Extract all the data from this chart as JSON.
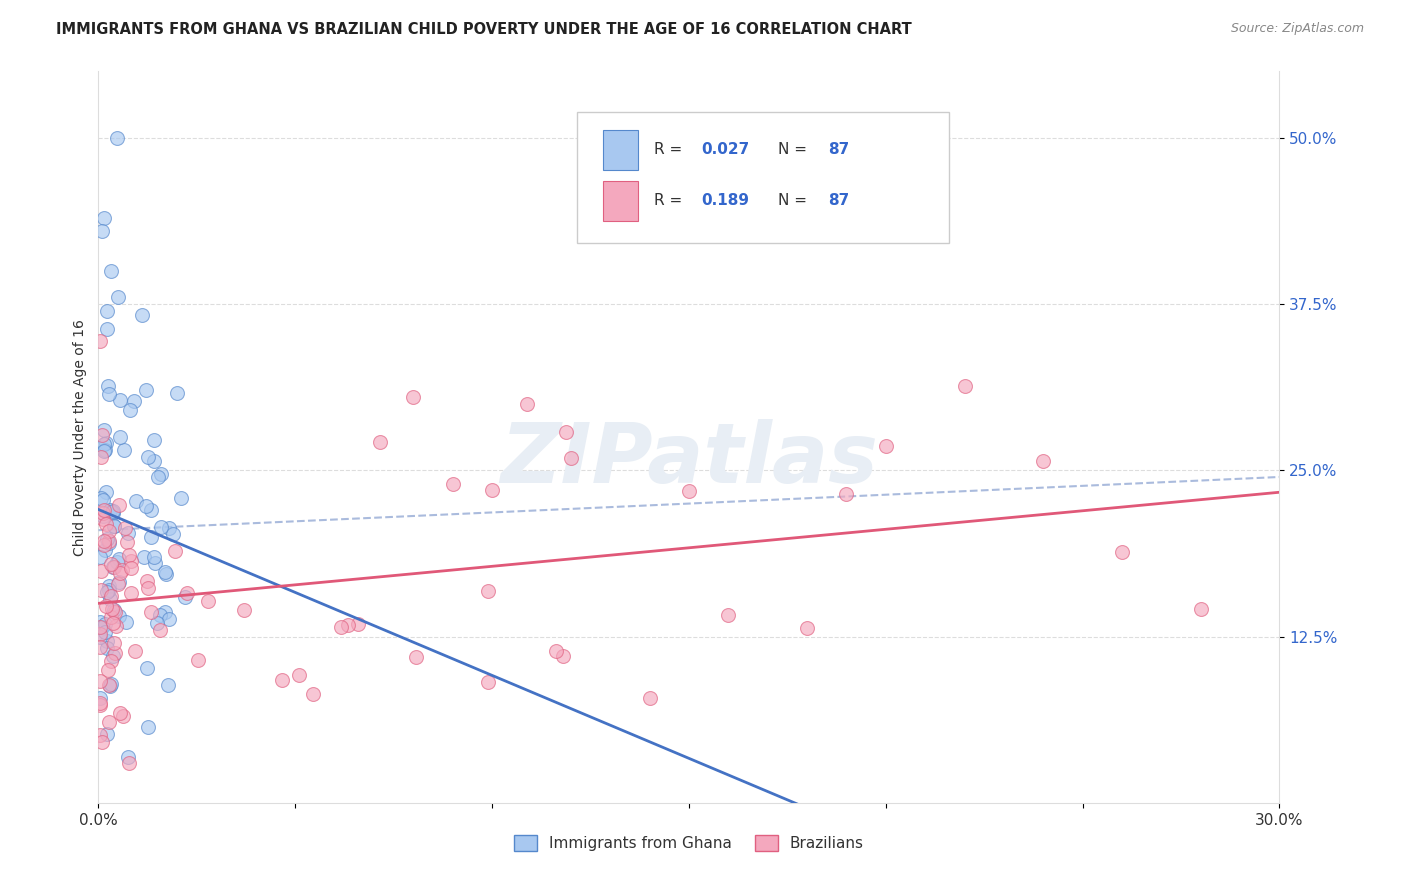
{
  "title": "IMMIGRANTS FROM GHANA VS BRAZILIAN CHILD POVERTY UNDER THE AGE OF 16 CORRELATION CHART",
  "source": "Source: ZipAtlas.com",
  "ylabel": "Child Poverty Under the Age of 16",
  "yticks": [
    "12.5%",
    "25.0%",
    "37.5%",
    "50.0%"
  ],
  "ytick_vals": [
    0.125,
    0.25,
    0.375,
    0.5
  ],
  "ylim": [
    0.0,
    0.55
  ],
  "xlim": [
    0.0,
    0.3
  ],
  "legend_label1": "Immigrants from Ghana",
  "legend_label2": "Brazilians",
  "r1": 0.027,
  "r2": 0.189,
  "n": 87,
  "color_blue": "#A8C8F0",
  "color_pink": "#F4A8BE",
  "color_blue_edge": "#5588CC",
  "color_pink_edge": "#E06080",
  "color_blue_text": "#3366CC",
  "watermark_text": "ZIPatlas",
  "watermark_color": "#E8EEF5",
  "grid_color": "#DDDDDD",
  "title_color": "#222222",
  "source_color": "#888888",
  "tick_label_color": "#333333",
  "regression_blue": "#4472C4",
  "regression_pink": "#E05878",
  "dashed_color": "#AABBDD"
}
